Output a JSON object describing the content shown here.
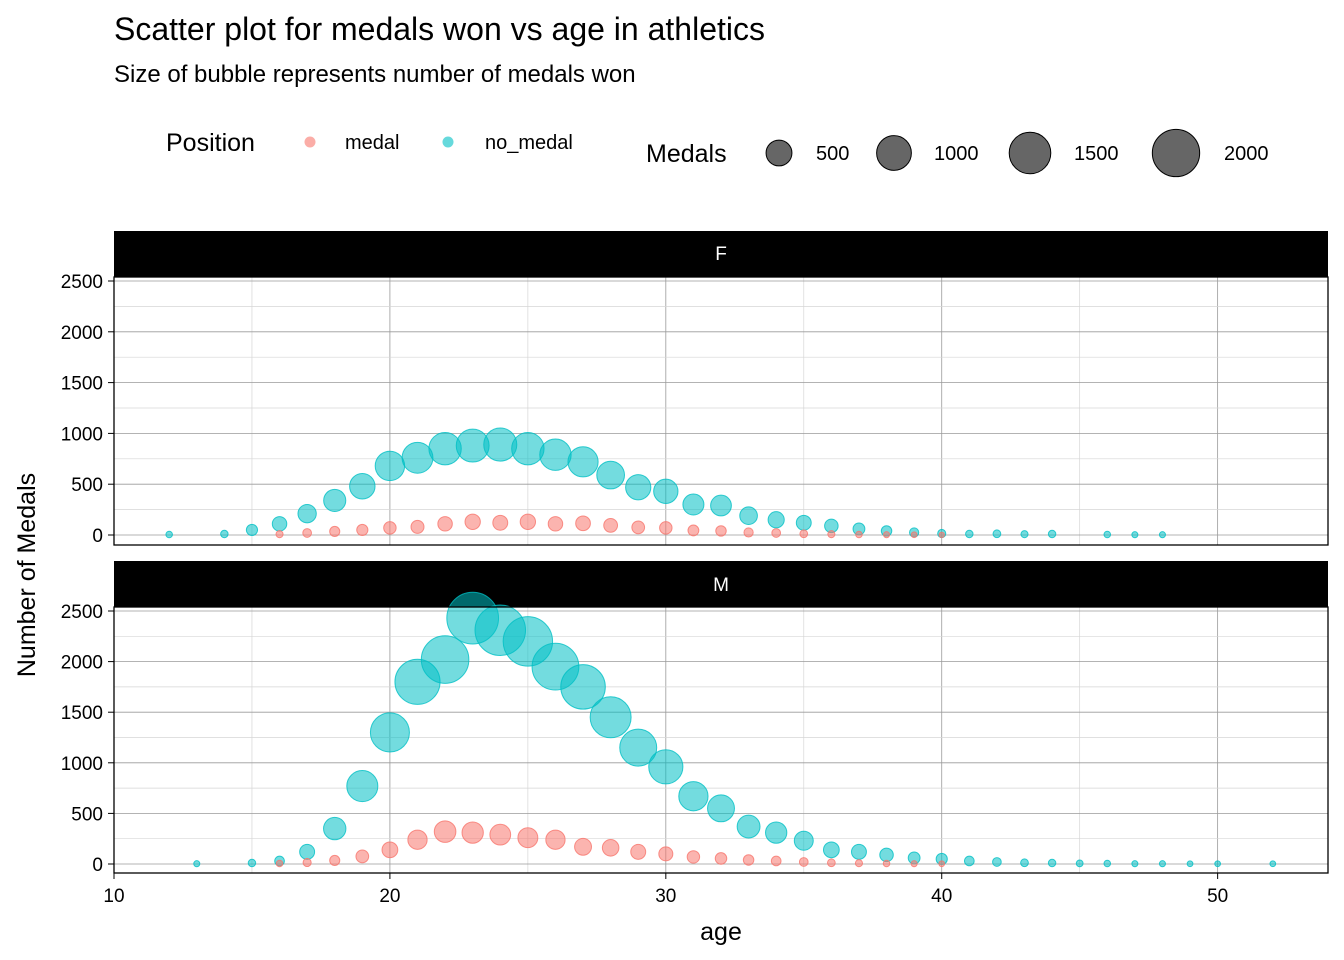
{
  "colors": {
    "medal": "#F8766D",
    "no_medal": "#00BFC4",
    "size_legend": "#333333",
    "strip_bg": "#000000",
    "strip_text": "#ffffff"
  },
  "chart_data": {
    "type": "scatter",
    "title": "Scatter plot for medals won vs age in athletics",
    "subtitle": "Size of bubble represents number of medals won",
    "xlabel": "age",
    "ylabel": "Number of Medals",
    "xlim": [
      10,
      54
    ],
    "ylim": [
      -100,
      2600
    ],
    "x_ticks": [
      10,
      20,
      30,
      40,
      50
    ],
    "y_ticks": [
      0,
      500,
      1000,
      1500,
      2000,
      2500
    ],
    "grid": true,
    "legend_position": "top",
    "color_legend": {
      "title": "Position",
      "entries": [
        {
          "key": "medal",
          "label": "medal"
        },
        {
          "key": "no_medal",
          "label": "no_medal"
        }
      ]
    },
    "size_legend": {
      "title": "Medals",
      "values": [
        500,
        1000,
        1500,
        2000
      ],
      "labels": [
        "500",
        "1000",
        "1500",
        "2000"
      ]
    },
    "facets": [
      {
        "label": "F",
        "series": [
          {
            "name": "medal",
            "x": [
              16,
              17,
              18,
              19,
              20,
              21,
              22,
              23,
              24,
              25,
              26,
              27,
              28,
              29,
              30,
              31,
              32,
              33,
              34,
              35,
              36,
              37,
              38,
              39,
              40
            ],
            "y": [
              8,
              20,
              35,
              50,
              70,
              80,
              110,
              130,
              120,
              130,
              110,
              115,
              95,
              75,
              70,
              45,
              40,
              25,
              20,
              12,
              8,
              5,
              3,
              2,
              1
            ]
          },
          {
            "name": "no_medal",
            "x": [
              12,
              14,
              15,
              16,
              17,
              18,
              19,
              20,
              21,
              22,
              23,
              24,
              25,
              26,
              27,
              28,
              29,
              30,
              31,
              32,
              33,
              34,
              35,
              36,
              37,
              38,
              39,
              40,
              41,
              42,
              43,
              44,
              46,
              47,
              48
            ],
            "y": [
              5,
              10,
              50,
              110,
              210,
              340,
              480,
              680,
              760,
              850,
              880,
              890,
              850,
              790,
              720,
              590,
              470,
              430,
              300,
              290,
              190,
              150,
              120,
              90,
              60,
              40,
              25,
              15,
              10,
              12,
              8,
              10,
              5,
              3,
              3
            ]
          }
        ]
      },
      {
        "label": "M",
        "series": [
          {
            "name": "medal",
            "x": [
              16,
              17,
              18,
              19,
              20,
              21,
              22,
              23,
              24,
              25,
              26,
              27,
              28,
              29,
              30,
              31,
              32,
              33,
              34,
              35,
              36,
              37,
              38,
              39,
              40
            ],
            "y": [
              5,
              15,
              35,
              75,
              140,
              240,
              320,
              310,
              290,
              260,
              240,
              170,
              160,
              120,
              100,
              70,
              55,
              40,
              30,
              20,
              12,
              8,
              5,
              3,
              2
            ]
          },
          {
            "name": "no_medal",
            "x": [
              13,
              15,
              16,
              17,
              18,
              19,
              20,
              21,
              22,
              23,
              24,
              25,
              26,
              27,
              28,
              29,
              30,
              31,
              32,
              33,
              34,
              35,
              36,
              37,
              38,
              39,
              40,
              41,
              42,
              43,
              44,
              45,
              46,
              47,
              48,
              49,
              50,
              52
            ],
            "y": [
              3,
              10,
              30,
              120,
              350,
              770,
              1300,
              1800,
              2020,
              2430,
              2310,
              2200,
              1950,
              1750,
              1450,
              1150,
              960,
              670,
              550,
              370,
              310,
              230,
              140,
              120,
              90,
              60,
              50,
              30,
              20,
              12,
              10,
              6,
              5,
              3,
              3,
              2,
              2,
              2
            ]
          }
        ]
      }
    ]
  }
}
